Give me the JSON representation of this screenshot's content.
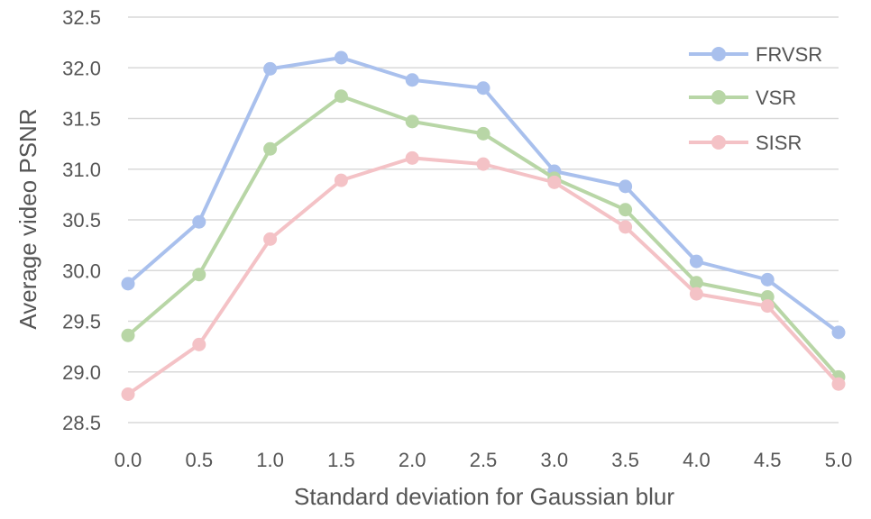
{
  "chart_data": {
    "type": "line",
    "title": "",
    "xlabel": "Standard deviation for Gaussian blur",
    "ylabel": "Average video PSNR",
    "x": [
      0.0,
      0.5,
      1.0,
      1.5,
      2.0,
      2.5,
      3.0,
      3.5,
      4.0,
      4.5,
      5.0
    ],
    "x_tick_labels": [
      "0.0",
      "0.5",
      "1.0",
      "1.5",
      "2.0",
      "2.5",
      "3.0",
      "3.5",
      "4.0",
      "4.5",
      "5.0"
    ],
    "y_tick_labels": [
      "28.5",
      "29.0",
      "29.5",
      "30.0",
      "30.5",
      "31.0",
      "31.5",
      "32.0",
      "32.5"
    ],
    "xlim": [
      0.0,
      5.0
    ],
    "ylim": [
      28.5,
      32.5
    ],
    "grid": "horizontal",
    "legend_position": "top-right",
    "series": [
      {
        "name": "FRVSR",
        "color": "#a9c0ed",
        "values": [
          29.87,
          30.48,
          31.99,
          32.1,
          31.88,
          31.8,
          30.98,
          30.83,
          30.09,
          29.91,
          29.39
        ]
      },
      {
        "name": "VSR",
        "color": "#b8d6a6",
        "values": [
          29.36,
          29.96,
          31.2,
          31.72,
          31.47,
          31.35,
          30.91,
          30.6,
          29.88,
          29.74,
          28.95
        ]
      },
      {
        "name": "SISR",
        "color": "#f4c2c6",
        "values": [
          28.78,
          29.27,
          30.31,
          30.89,
          31.11,
          31.05,
          30.87,
          30.43,
          29.77,
          29.65,
          28.88
        ]
      }
    ]
  }
}
